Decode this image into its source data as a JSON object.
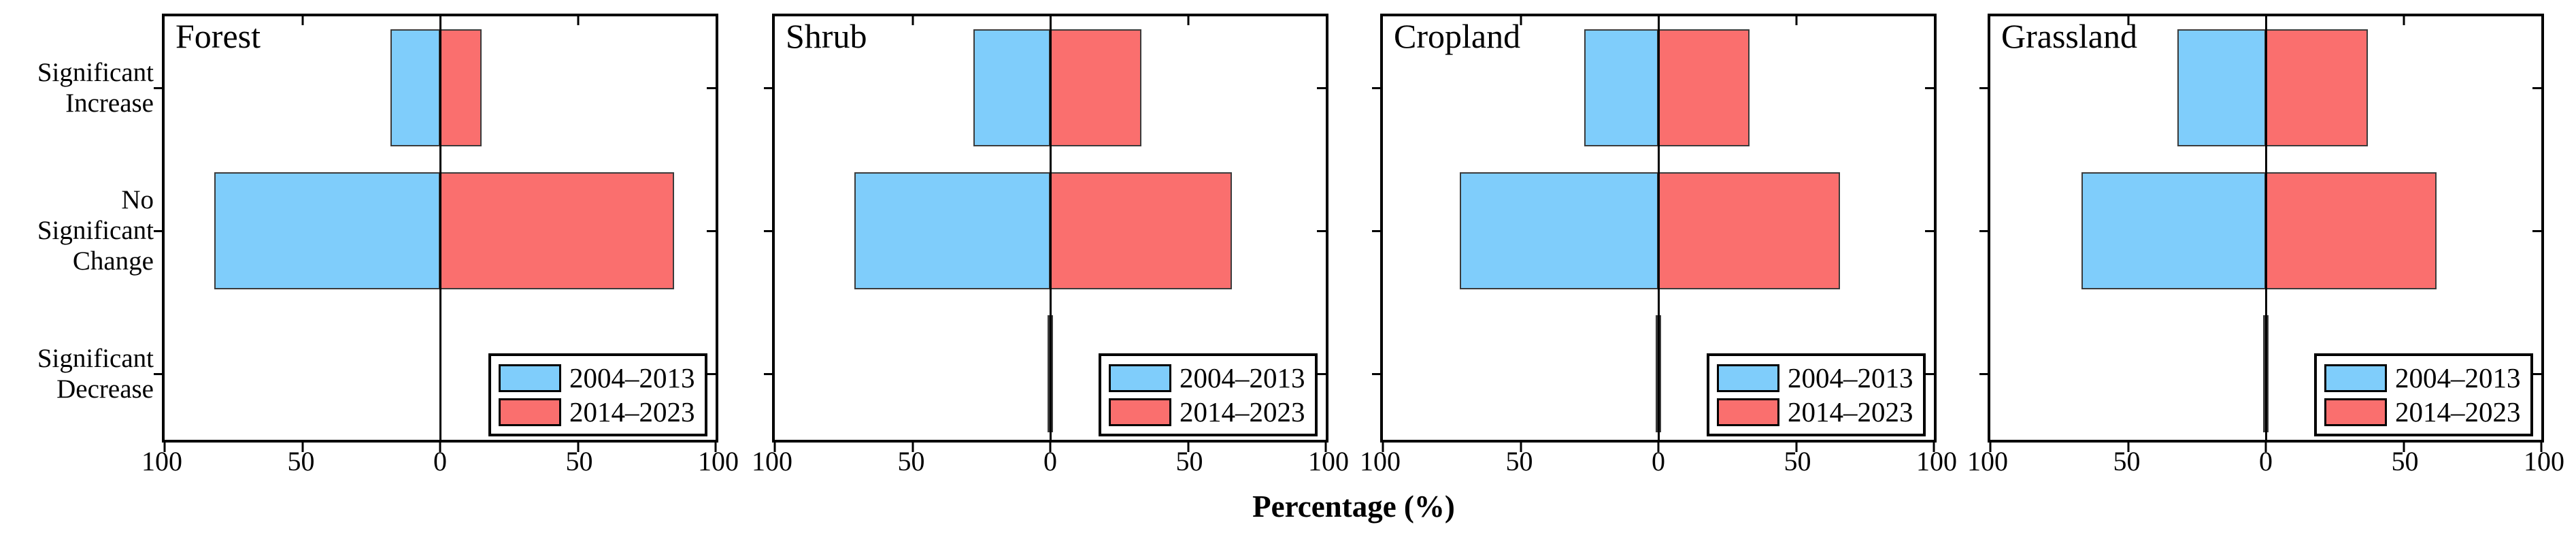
{
  "figure": {
    "xlabel": "Percentage (%)",
    "x_tick_labels": [
      "100",
      "50",
      "0",
      "50",
      "100"
    ],
    "x_tick_positions_pct": [
      0,
      25,
      50,
      75,
      100
    ],
    "category_lines": [
      [
        "Significant",
        "Increase"
      ],
      [
        "No",
        "Significant",
        "Change"
      ],
      [
        "Significant",
        "Decrease"
      ]
    ],
    "legend": {
      "items": [
        {
          "label": "2004–2013",
          "color": "#7FCDFB"
        },
        {
          "label": "2014–2023",
          "color": "#FA6F6E"
        }
      ]
    },
    "colors": {
      "series_2004_2013": "#7FCDFB",
      "series_2014_2023": "#FA6F6E",
      "bar_edge": "#3B3B3B",
      "axis": "#000000",
      "background": "#FFFFFF"
    }
  },
  "chart_data": [
    {
      "type": "bar",
      "orientation": "diverging-horizontal",
      "title": "Forest",
      "categories": [
        "Significant Increase",
        "No Significant Change",
        "Significant Decrease"
      ],
      "xlabel": "Percentage (%)",
      "xlim": [
        100,
        0,
        100
      ],
      "x_ticks": [
        100,
        50,
        0,
        50,
        100
      ],
      "legend_position": "lower right",
      "series": [
        {
          "name": "2004–2013",
          "side": "left",
          "color": "#7FCDFB",
          "values": [
            18,
            82,
            0
          ]
        },
        {
          "name": "2014–2023",
          "side": "right",
          "color": "#FA6F6E",
          "values": [
            15,
            85,
            0
          ]
        }
      ]
    },
    {
      "type": "bar",
      "orientation": "diverging-horizontal",
      "title": "Shrub",
      "categories": [
        "Significant Increase",
        "No Significant Change",
        "Significant Decrease"
      ],
      "xlabel": "Percentage (%)",
      "xlim": [
        100,
        0,
        100
      ],
      "x_ticks": [
        100,
        50,
        0,
        50,
        100
      ],
      "legend_position": "lower right",
      "series": [
        {
          "name": "2004–2013",
          "side": "left",
          "color": "#7FCDFB",
          "values": [
            28,
            71,
            1
          ]
        },
        {
          "name": "2014–2023",
          "side": "right",
          "color": "#FA6F6E",
          "values": [
            33,
            66,
            1
          ]
        }
      ]
    },
    {
      "type": "bar",
      "orientation": "diverging-horizontal",
      "title": "Cropland",
      "categories": [
        "Significant Increase",
        "No Significant Change",
        "Significant Decrease"
      ],
      "xlabel": "Percentage (%)",
      "xlim": [
        100,
        0,
        100
      ],
      "x_ticks": [
        100,
        50,
        0,
        50,
        100
      ],
      "legend_position": "lower right",
      "series": [
        {
          "name": "2004–2013",
          "side": "left",
          "color": "#7FCDFB",
          "values": [
            27,
            72,
            1
          ]
        },
        {
          "name": "2014–2023",
          "side": "right",
          "color": "#FA6F6E",
          "values": [
            33,
            66,
            1
          ]
        }
      ]
    },
    {
      "type": "bar",
      "orientation": "diverging-horizontal",
      "title": "Grassland",
      "categories": [
        "Significant Increase",
        "No Significant Change",
        "Significant Decrease"
      ],
      "xlabel": "Percentage (%)",
      "xlim": [
        100,
        0,
        100
      ],
      "x_ticks": [
        100,
        50,
        0,
        50,
        100
      ],
      "legend_position": "lower right",
      "series": [
        {
          "name": "2004–2013",
          "side": "left",
          "color": "#7FCDFB",
          "values": [
            32,
            67,
            1
          ]
        },
        {
          "name": "2014–2023",
          "side": "right",
          "color": "#FA6F6E",
          "values": [
            37,
            62,
            1
          ]
        }
      ]
    }
  ]
}
